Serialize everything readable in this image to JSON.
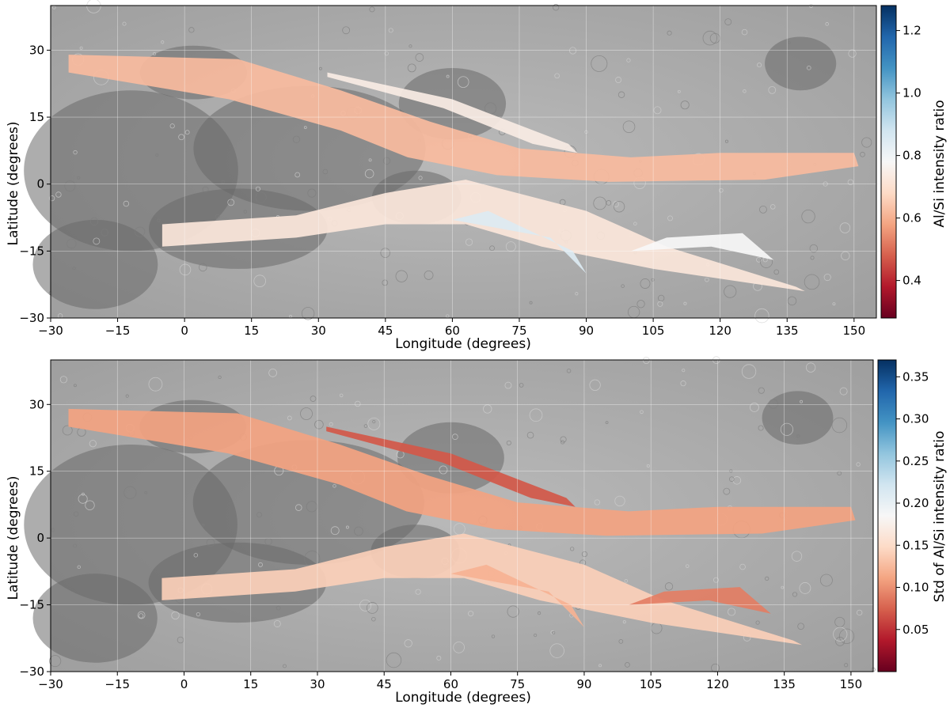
{
  "chart_data": [
    {
      "type": "heatmap",
      "title": "",
      "xlabel": "Longitude (degrees)",
      "ylabel": "Latitude (degrees)",
      "xlim": [
        -30,
        155
      ],
      "ylim": [
        -30,
        40
      ],
      "xticks": [
        -30,
        -15,
        0,
        15,
        30,
        45,
        60,
        75,
        90,
        105,
        120,
        135,
        150
      ],
      "yticks": [
        -30,
        -15,
        0,
        15,
        30
      ],
      "grid": true,
      "colormap": "RdBu",
      "colorbar": {
        "label": "Al/Si intensity ratio",
        "range": [
          0.28,
          1.28
        ],
        "ticks": [
          0.4,
          0.6,
          0.8,
          1.0,
          1.2
        ]
      },
      "background": "lunar surface basemap",
      "swaths": [
        {
          "id": "A",
          "value": 0.62,
          "polygon": [
            [
              -26,
              29
            ],
            [
              -26,
              25
            ],
            [
              10,
              19
            ],
            [
              35,
              12
            ],
            [
              50,
              6
            ],
            [
              70,
              2
            ],
            [
              95,
              0.5
            ],
            [
              130,
              1
            ],
            [
              151,
              4
            ],
            [
              150,
              7
            ],
            [
              120,
              7
            ],
            [
              100,
              6
            ],
            [
              75,
              8
            ],
            [
              55,
              14
            ],
            [
              35,
              21
            ],
            [
              12,
              28
            ]
          ]
        },
        {
          "id": "B",
          "value": 0.72,
          "polygon": [
            [
              -5,
              -9
            ],
            [
              -5,
              -14
            ],
            [
              25,
              -12
            ],
            [
              45,
              -9
            ],
            [
              63,
              -9
            ],
            [
              80,
              -14
            ],
            [
              105,
              -19
            ],
            [
              139,
              -24
            ],
            [
              137,
              -23
            ],
            [
              108,
              -14
            ],
            [
              90,
              -6
            ],
            [
              63,
              1
            ],
            [
              45,
              -2
            ],
            [
              25,
              -7
            ]
          ]
        },
        {
          "id": "C",
          "value": 0.74,
          "polygon": [
            [
              32,
              25
            ],
            [
              32,
              24
            ],
            [
              58,
              17
            ],
            [
              78,
              9
            ],
            [
              88,
              7
            ],
            [
              86,
              9
            ],
            [
              60,
              19
            ]
          ]
        },
        {
          "id": "D",
          "value": 0.85,
          "polygon": [
            [
              60,
              -8
            ],
            [
              82,
              -12
            ],
            [
              90,
              -20
            ],
            [
              87,
              -15
            ],
            [
              68,
              -6
            ]
          ]
        },
        {
          "id": "E",
          "value": 0.78,
          "polygon": [
            [
              100,
              -15
            ],
            [
              118,
              -14
            ],
            [
              132,
              -17
            ],
            [
              125,
              -11
            ],
            [
              108,
              -12
            ]
          ]
        }
      ]
    },
    {
      "type": "heatmap",
      "title": "",
      "xlabel": "Longitude (degrees)",
      "ylabel": "Latitude (degrees)",
      "xlim": [
        -30,
        155
      ],
      "ylim": [
        -30,
        40
      ],
      "xticks": [
        -30,
        -15,
        0,
        15,
        30,
        45,
        60,
        75,
        90,
        105,
        120,
        135,
        150
      ],
      "yticks": [
        -30,
        -15,
        0,
        15,
        30
      ],
      "grid": true,
      "colormap": "RdBu",
      "colorbar": {
        "label": "Std of Al/Si intensity ratio",
        "range": [
          0.0,
          0.37
        ],
        "ticks": [
          0.05,
          0.1,
          0.15,
          0.2,
          0.25,
          0.3,
          0.35
        ]
      },
      "background": "lunar surface basemap",
      "swaths": [
        {
          "id": "A",
          "value": 0.11,
          "polygon": [
            [
              -26,
              29
            ],
            [
              -26,
              25
            ],
            [
              10,
              19
            ],
            [
              35,
              12
            ],
            [
              50,
              6
            ],
            [
              70,
              2
            ],
            [
              95,
              0.5
            ],
            [
              130,
              1
            ],
            [
              151,
              4
            ],
            [
              150,
              7
            ],
            [
              120,
              7
            ],
            [
              100,
              6
            ],
            [
              75,
              8
            ],
            [
              55,
              14
            ],
            [
              35,
              21
            ],
            [
              12,
              28
            ]
          ]
        },
        {
          "id": "B",
          "value": 0.14,
          "polygon": [
            [
              -5,
              -9
            ],
            [
              -5,
              -14
            ],
            [
              25,
              -12
            ],
            [
              45,
              -9
            ],
            [
              63,
              -9
            ],
            [
              80,
              -14
            ],
            [
              105,
              -19
            ],
            [
              139,
              -24
            ],
            [
              137,
              -23
            ],
            [
              108,
              -14
            ],
            [
              90,
              -6
            ],
            [
              63,
              1
            ],
            [
              45,
              -2
            ],
            [
              25,
              -7
            ]
          ]
        },
        {
          "id": "C",
          "value": 0.07,
          "polygon": [
            [
              32,
              25
            ],
            [
              32,
              24
            ],
            [
              58,
              17
            ],
            [
              78,
              9
            ],
            [
              88,
              7
            ],
            [
              86,
              9
            ],
            [
              60,
              19
            ]
          ]
        },
        {
          "id": "D",
          "value": 0.12,
          "polygon": [
            [
              60,
              -8
            ],
            [
              82,
              -12
            ],
            [
              90,
              -20
            ],
            [
              87,
              -15
            ],
            [
              68,
              -6
            ]
          ]
        },
        {
          "id": "E",
          "value": 0.09,
          "polygon": [
            [
              100,
              -15
            ],
            [
              118,
              -14
            ],
            [
              132,
              -17
            ],
            [
              125,
              -11
            ],
            [
              108,
              -12
            ]
          ]
        }
      ]
    }
  ]
}
